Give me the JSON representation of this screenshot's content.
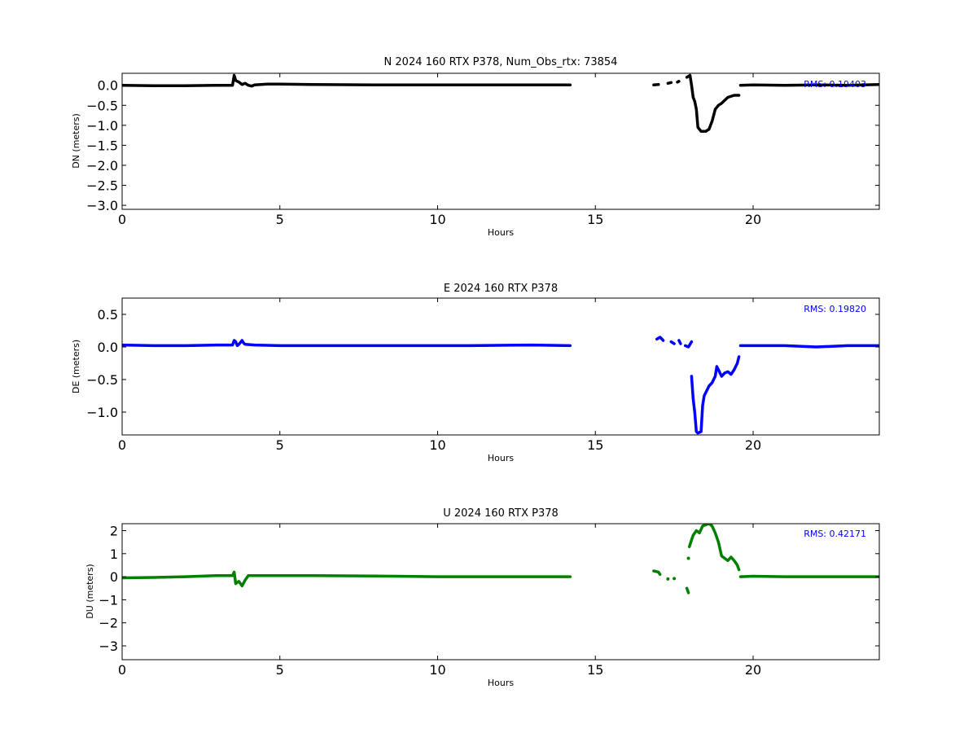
{
  "chart_data": [
    {
      "type": "scatter",
      "title": "N 2024 160 RTX  P378, Num_Obs_rtx: 73854",
      "xlabel": "Hours",
      "ylabel": "DN (meters)",
      "xlim": [
        0,
        24
      ],
      "ylim": [
        -3.1,
        0.3
      ],
      "xticks": [
        0,
        5,
        10,
        15,
        20
      ],
      "xtick_labels": [
        "0",
        "5",
        "10",
        "15",
        "20"
      ],
      "yticks": [
        0.0,
        -0.5,
        -1.0,
        -1.5,
        -2.0,
        -2.5,
        -3.0
      ],
      "ytick_labels": [
        "0.0",
        "−0.5",
        "−1.0",
        "−1.5",
        "−2.0",
        "−2.5",
        "−3.0"
      ],
      "rms_text": "RMS:  0.19403",
      "grid": false,
      "color": "#000000",
      "series": [
        {
          "x": [
            0,
            1,
            2,
            3,
            3.5,
            3.55,
            3.6,
            3.7,
            3.8,
            3.9,
            4.0,
            4.1,
            4.2,
            4.4,
            4.6,
            5,
            6,
            8,
            10,
            12,
            14.2
          ],
          "y": [
            0,
            -0.01,
            -0.01,
            0,
            0,
            0.25,
            0.12,
            0.08,
            0.02,
            0.05,
            0.0,
            -0.02,
            0.01,
            0.02,
            0.03,
            0.03,
            0.02,
            0.01,
            0.01,
            0.01,
            0.01
          ]
        },
        {
          "x": [
            16.85,
            17.0
          ],
          "y": [
            0.01,
            0.02
          ]
        },
        {
          "x": [
            17.3,
            17.4
          ],
          "y": [
            0.05,
            0.07
          ]
        },
        {
          "x": [
            17.6,
            17.65
          ],
          "y": [
            0.08,
            0.1
          ]
        },
        {
          "x": [
            17.9,
            18.0,
            18.05,
            18.1,
            18.15,
            18.2,
            18.25,
            18.3,
            18.35,
            18.5,
            18.6,
            18.7,
            18.8,
            18.9,
            19.0,
            19.2,
            19.4,
            19.55
          ],
          "y": [
            0.2,
            0.25,
            0.0,
            -0.3,
            -0.4,
            -0.6,
            -1.05,
            -1.1,
            -1.15,
            -1.15,
            -1.1,
            -0.9,
            -0.6,
            -0.5,
            -0.45,
            -0.3,
            -0.25,
            -0.25
          ]
        },
        {
          "x": [
            19.6,
            20,
            21,
            22,
            23,
            24
          ],
          "y": [
            0.0,
            0.01,
            0.0,
            0.01,
            0.0,
            0.02
          ]
        }
      ]
    },
    {
      "type": "scatter",
      "title": "E 2024 160 RTX  P378",
      "xlabel": "Hours",
      "ylabel": "DE (meters)",
      "xlim": [
        0,
        24
      ],
      "ylim": [
        -1.35,
        0.75
      ],
      "xticks": [
        0,
        5,
        10,
        15,
        20
      ],
      "xtick_labels": [
        "0",
        "5",
        "10",
        "15",
        "20"
      ],
      "yticks": [
        0.5,
        0.0,
        -0.5,
        -1.0
      ],
      "ytick_labels": [
        "0.5",
        "0.0",
        "−0.5",
        "−1.0"
      ],
      "rms_text": "RMS:  0.19820",
      "grid": false,
      "color": "#0000ff",
      "series": [
        {
          "x": [
            0,
            1,
            2,
            3,
            3.5,
            3.55,
            3.6,
            3.65,
            3.7,
            3.8,
            3.85,
            3.9,
            4.2,
            5,
            8,
            11,
            13,
            14.2
          ],
          "y": [
            0.03,
            0.02,
            0.02,
            0.03,
            0.03,
            0.1,
            0.08,
            0.02,
            0.04,
            0.1,
            0.06,
            0.04,
            0.03,
            0.02,
            0.02,
            0.02,
            0.03,
            0.02
          ]
        },
        {
          "x": [
            16.95,
            17.05,
            17.15
          ],
          "y": [
            0.12,
            0.15,
            0.1
          ]
        },
        {
          "x": [
            17.4,
            17.5
          ],
          "y": [
            0.08,
            0.05
          ]
        },
        {
          "x": [
            17.65,
            17.7
          ],
          "y": [
            0.1,
            0.05
          ]
        },
        {
          "x": [
            17.85,
            17.95,
            18.05
          ],
          "y": [
            0.02,
            0.0,
            0.08
          ]
        },
        {
          "x": [
            18.05,
            18.1,
            18.15,
            18.2,
            18.25,
            18.35,
            18.4,
            18.45,
            18.5,
            18.6,
            18.7,
            18.8,
            18.85,
            18.9,
            19.0,
            19.1,
            19.2,
            19.3,
            19.4,
            19.5,
            19.55
          ],
          "y": [
            -0.45,
            -0.8,
            -1.0,
            -1.3,
            -1.32,
            -1.3,
            -0.9,
            -0.75,
            -0.7,
            -0.6,
            -0.55,
            -0.45,
            -0.3,
            -0.35,
            -0.45,
            -0.4,
            -0.38,
            -0.42,
            -0.35,
            -0.25,
            -0.15
          ]
        },
        {
          "x": [
            19.6,
            20,
            21,
            22,
            23,
            24
          ],
          "y": [
            0.02,
            0.02,
            0.02,
            0.0,
            0.02,
            0.02
          ]
        }
      ]
    },
    {
      "type": "scatter",
      "title": "U 2024 160 RTX  P378",
      "xlabel": "Hours",
      "ylabel": "DU (meters)",
      "xlim": [
        0,
        24
      ],
      "ylim": [
        -3.6,
        2.3
      ],
      "xticks": [
        0,
        5,
        10,
        15,
        20
      ],
      "xtick_labels": [
        "0",
        "5",
        "10",
        "15",
        "20"
      ],
      "yticks": [
        2,
        1,
        0,
        -1,
        -2,
        -3
      ],
      "ytick_labels": [
        "2",
        "1",
        "0",
        "−1",
        "−2",
        "−3"
      ],
      "rms_text": "RMS:  0.42171",
      "grid": false,
      "color": "#008000",
      "series": [
        {
          "x": [
            0,
            1,
            2,
            3,
            3.5,
            3.55,
            3.6,
            3.7,
            3.8,
            3.9,
            4.0,
            4.2,
            4.5,
            5,
            6,
            8,
            10,
            12,
            14.2
          ],
          "y": [
            -0.05,
            -0.03,
            0.0,
            0.05,
            0.05,
            0.2,
            -0.3,
            -0.2,
            -0.4,
            -0.15,
            0.05,
            0.05,
            0.05,
            0.05,
            0.05,
            0.03,
            0.0,
            0.0,
            0.0
          ]
        },
        {
          "x": [
            16.85,
            17.0,
            17.05
          ],
          "y": [
            0.25,
            0.2,
            0.1
          ]
        },
        {
          "x": [
            17.3
          ],
          "y": [
            -0.1
          ]
        },
        {
          "x": [
            17.5
          ],
          "y": [
            -0.08
          ]
        },
        {
          "x": [
            17.9,
            17.95
          ],
          "y": [
            -0.5,
            -0.7
          ]
        },
        {
          "x": [
            17.95
          ],
          "y": [
            0.8
          ]
        },
        {
          "x": [
            17.98,
            18.05,
            18.1,
            18.2,
            18.3,
            18.4,
            18.5,
            18.6,
            18.7,
            18.8,
            18.9,
            19.0,
            19.1,
            19.2,
            19.3,
            19.4,
            19.5,
            19.55
          ],
          "y": [
            1.3,
            1.6,
            1.8,
            2.0,
            1.9,
            2.2,
            2.25,
            2.3,
            2.2,
            1.9,
            1.5,
            0.9,
            0.8,
            0.7,
            0.85,
            0.7,
            0.5,
            0.3
          ]
        },
        {
          "x": [
            19.6,
            20,
            21,
            22,
            23,
            24
          ],
          "y": [
            0.0,
            0.02,
            0.0,
            0.0,
            0.0,
            0.0
          ]
        }
      ]
    }
  ]
}
